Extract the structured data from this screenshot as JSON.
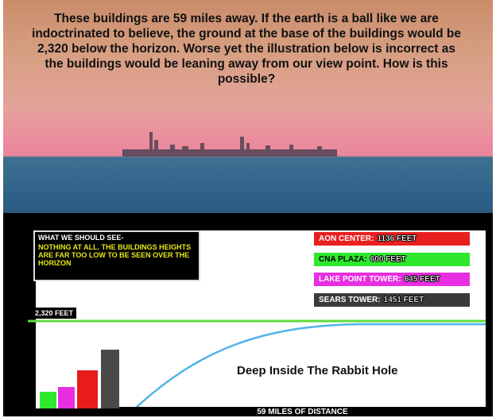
{
  "photo": {
    "caption": "These buildings are 59 miles away.  If the earth is a ball like we are indoctrinated to believe, the ground at the base of the buildings would be 2,320 below the horizon. Worse yet the illustration below is incorrect as the buildings would be leaning away from our view point. How is this possible?"
  },
  "illustration": {
    "note_title": "WHAT WE SHOULD SEE-",
    "note_text": "NOTHING AT ALL. THE BUILDINGS HEIGHTS ARE FAR TOO LOW TO BE SEEN OVER THE HORIZON",
    "legend": [
      {
        "name": "AON CENTER:",
        "height": "1136 FEET"
      },
      {
        "name": "CNA PLAZA:",
        "height": "600 FEET"
      },
      {
        "name": "LAKE POINT TOWER:",
        "height": "645 FEET"
      },
      {
        "name": "SEARS TOWER:",
        "height": "1451 FEET"
      }
    ],
    "horizon_label": "2,320 FEET",
    "watermark": "Deep Inside The Rabbit Hole",
    "distance_label": "59 MILES OF DISTANCE"
  }
}
